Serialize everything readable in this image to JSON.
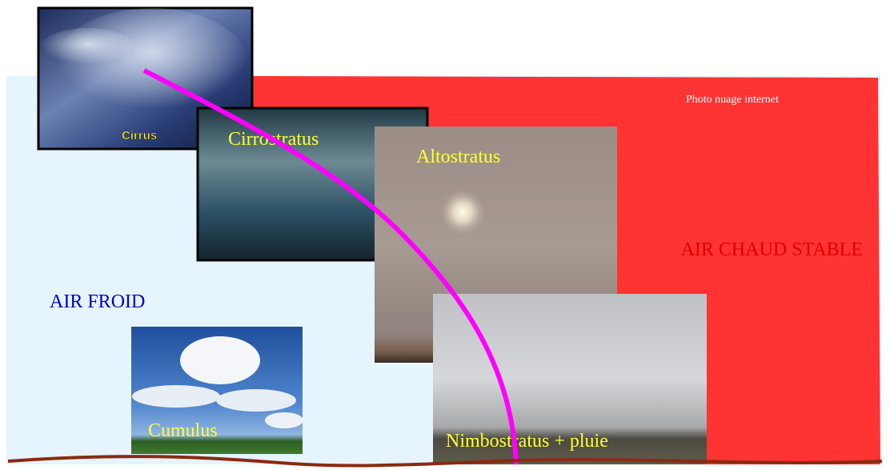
{
  "clouds": [
    {
      "label": "Cirrus"
    },
    {
      "label": "Cirrostratus"
    },
    {
      "label": "Altostratus"
    },
    {
      "label": "Nimbostratus + pluie"
    },
    {
      "label": "Cumulus"
    }
  ],
  "regions": {
    "cold": "AIR FROID",
    "warm": "AIR CHAUD STABLE"
  },
  "credit": "Photo nuage internet"
}
